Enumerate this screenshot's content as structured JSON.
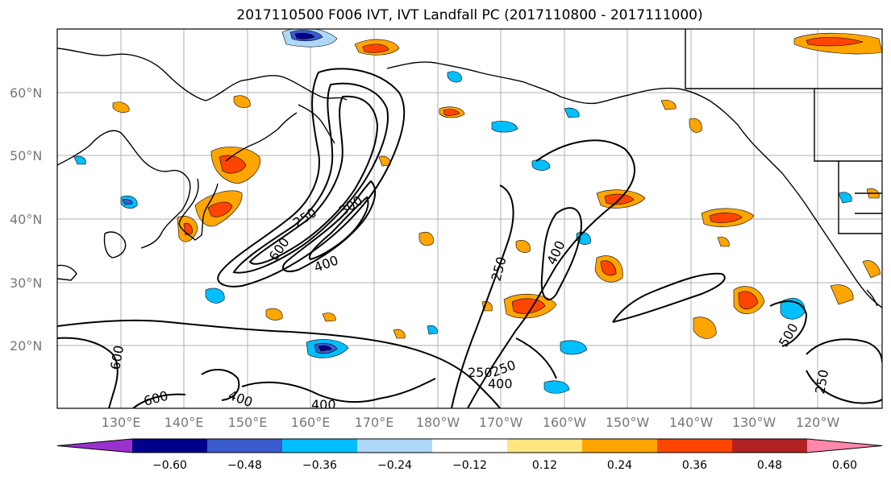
{
  "title": "2017110500 F006 IVT, IVT Landfall PC (2017110800 - 2017111000)",
  "lat_labels": [
    "60°N",
    "50°N",
    "40°N",
    "30°N",
    "20°N"
  ],
  "lon_labels": [
    "130°E",
    "140°E",
    "150°E",
    "160°E",
    "170°E",
    "180°W",
    "170°W",
    "160°W",
    "150°W",
    "140°W",
    "130°W",
    "120°W"
  ],
  "contour_labels": [
    "250",
    "300",
    "400",
    "600",
    "250",
    "400",
    "250",
    "600",
    "600",
    "400",
    "400",
    "250",
    "400",
    "500",
    "250"
  ],
  "colorbar": {
    "colors": [
      "#9932cc",
      "#00008b",
      "#3a5bcd",
      "#00bfff",
      "#add8f6",
      "#ffffff",
      "#ffe680",
      "#ffa500",
      "#ff4500",
      "#b22222",
      "#ff88aa"
    ],
    "tick_labels": [
      "−0.60",
      "−0.48",
      "−0.36",
      "−0.24",
      "−0.12",
      "0.12",
      "0.24",
      "0.36",
      "0.48",
      "0.60"
    ]
  }
}
